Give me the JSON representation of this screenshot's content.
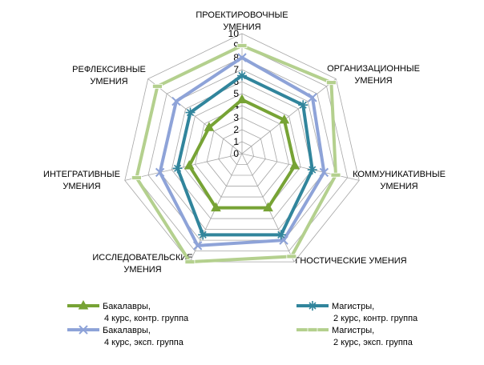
{
  "chart_data": {
    "type": "radar",
    "axes": [
      [
        "ПРОЕКТИРОВОЧНЫЕ",
        "УМЕНИЯ"
      ],
      [
        "ОРГАНИЗАЦИОННЫЕ",
        "УМЕНИЯ"
      ],
      [
        "КОММУНИКАТИВНЫЕ",
        "УМЕНИЯ"
      ],
      [
        "ГНОСТИЧЕСКИЕ УМЕНИЯ"
      ],
      [
        "ИССЛЕДОВАТЕЛЬСКИЕ",
        "УМЕНИЯ"
      ],
      [
        "ИНТЕГРАТИВНЫЕ",
        "УМЕНИЯ"
      ],
      [
        "РЕФЛЕКСИВНЫЕ",
        "УМЕНИЯ"
      ]
    ],
    "ticks": [
      "0",
      "1",
      "2",
      "3",
      "4",
      "5",
      "6",
      "7",
      "8",
      "9",
      "10"
    ],
    "rlim": [
      0,
      10
    ],
    "grid": true,
    "legend_position": "bottom",
    "series": [
      {
        "name_lines": [
          "Бакалавры,",
          "4 курс, контр. группа"
        ],
        "values": [
          4.5,
          4.5,
          4.5,
          5.0,
          5.0,
          4.5,
          3.5
        ],
        "color": "#77a335",
        "marker": "triangle"
      },
      {
        "name_lines": [
          "Магистры,",
          "2 курс, контр. группа"
        ],
        "values": [
          6.5,
          6.5,
          6.0,
          7.5,
          7.5,
          5.5,
          5.5
        ],
        "color": "#31859c",
        "marker": "star"
      },
      {
        "name_lines": [
          "Бакалавры,",
          "4 курс, эксп. группа"
        ],
        "values": [
          8.0,
          7.5,
          7.0,
          8.0,
          8.5,
          7.0,
          7.0
        ],
        "color": "#8ea3d8",
        "marker": "x"
      },
      {
        "name_lines": [
          "Магистры,",
          "2 курс, эксп. группа"
        ],
        "values": [
          9.0,
          9.5,
          8.0,
          9.5,
          10.0,
          9.0,
          9.0
        ],
        "color": "#b4d08e",
        "marker": "dash"
      }
    ]
  }
}
